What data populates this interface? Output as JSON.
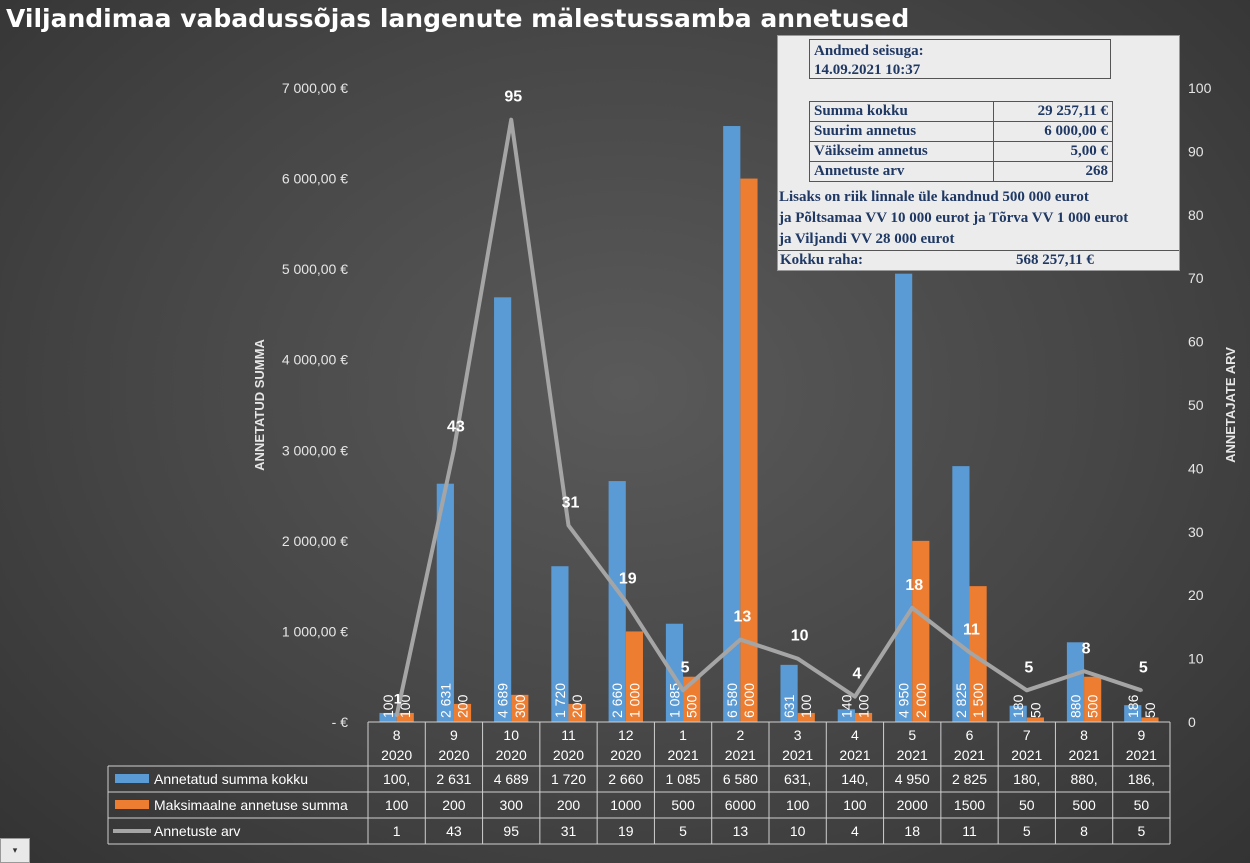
{
  "chart_data": {
    "type": "bar",
    "title": "Viljandimaa vabadussõjas langenute mälestussamba annetused",
    "ylabel_left": "ANNETATUD SUMMA",
    "ylabel_right": "ANNETAJATE ARV",
    "categories": [
      {
        "month": "8",
        "year": "2020"
      },
      {
        "month": "9",
        "year": "2020"
      },
      {
        "month": "10",
        "year": "2020"
      },
      {
        "month": "11",
        "year": "2020"
      },
      {
        "month": "12",
        "year": "2020"
      },
      {
        "month": "1",
        "year": "2021"
      },
      {
        "month": "2",
        "year": "2021"
      },
      {
        "month": "3",
        "year": "2021"
      },
      {
        "month": "4",
        "year": "2021"
      },
      {
        "month": "5",
        "year": "2021"
      },
      {
        "month": "6",
        "year": "2021"
      },
      {
        "month": "7",
        "year": "2021"
      },
      {
        "month": "8",
        "year": "2021"
      },
      {
        "month": "9",
        "year": "2021"
      }
    ],
    "left_axis": {
      "min": 0,
      "max": 7000,
      "step": 1000,
      "tick_labels": [
        "-  €",
        "1 000,00 €",
        "2 000,00 €",
        "3 000,00 €",
        "4 000,00 €",
        "5 000,00 €",
        "6 000,00 €",
        "7 000,00 €"
      ]
    },
    "right_axis": {
      "min": 0,
      "max": 100,
      "step": 10,
      "tick_labels": [
        "0",
        "10",
        "20",
        "30",
        "40",
        "50",
        "60",
        "70",
        "80",
        "90",
        "100"
      ]
    },
    "series": [
      {
        "name": "Annetatud summa kokku",
        "kind": "bar",
        "axis": "left",
        "color": "#5b9bd5",
        "values": [
          100,
          2631,
          4689,
          1720,
          2660,
          1085,
          6580,
          631,
          140,
          4950,
          2825,
          180,
          880,
          186
        ],
        "labels": [
          "100",
          "2 631",
          "4 689",
          "1 720",
          "2 660",
          "1 085",
          "6 580",
          "631",
          "140",
          "4 950",
          "2 825",
          "180",
          "880",
          "186"
        ],
        "table": [
          "100,",
          "2 631",
          "4 689",
          "1 720",
          "2 660",
          "1 085",
          "6 580",
          "631,",
          "140,",
          "4 950",
          "2 825",
          "180,",
          "880,",
          "186,"
        ]
      },
      {
        "name": "Maksimaalne annetuse summa",
        "kind": "bar",
        "axis": "left",
        "color": "#ed7d31",
        "values": [
          100,
          200,
          300,
          200,
          1000,
          500,
          6000,
          100,
          100,
          2000,
          1500,
          50,
          500,
          50
        ],
        "labels": [
          "100",
          "200",
          "300",
          "200",
          "1 000",
          "500",
          "6 000",
          "100",
          "100",
          "2 000",
          "1 500",
          "50",
          "500",
          "50"
        ],
        "table": [
          "100",
          "200",
          "300",
          "200",
          "1000",
          "500",
          "6000",
          "100",
          "100",
          "2000",
          "1500",
          "50",
          "500",
          "50"
        ]
      },
      {
        "name": "Annetuste arv",
        "kind": "line",
        "axis": "right",
        "color": "#a5a5a5",
        "values": [
          1,
          43,
          95,
          31,
          19,
          5,
          13,
          10,
          4,
          18,
          11,
          5,
          8,
          5
        ],
        "labels": [
          "1",
          "43",
          "95",
          "31",
          "19",
          "5",
          "13",
          "10",
          "4",
          "18",
          "11",
          "5",
          "8",
          "5"
        ],
        "table": [
          "1",
          "43",
          "95",
          "31",
          "19",
          "5",
          "13",
          "10",
          "4",
          "18",
          "11",
          "5",
          "8",
          "5"
        ]
      }
    ],
    "grid": false,
    "legend": "data-table"
  },
  "infobox": {
    "asof_label": "Andmed seisuga:",
    "asof_value": "14.09.2021 10:37",
    "stats": [
      {
        "label": "Summa kokku",
        "value": "29 257,11 €"
      },
      {
        "label": "Suurim annetus",
        "value": "6 000,00 €"
      },
      {
        "label": "Väikseim annetus",
        "value": "5,00 €"
      },
      {
        "label": "Annetuste arv",
        "value": "268"
      }
    ],
    "note_lines": [
      "Lisaks on riik linnale üle kandnud 500 000 eurot",
      "ja Põltsamaa VV 10 000 eurot ja Tõrva VV 1 000 eurot",
      "ja Viljandi VV 28 000 eurot"
    ],
    "total_label": "Kokku raha:",
    "total_value": "568 257,11 €"
  },
  "corner_button": {
    "label": "▾"
  }
}
